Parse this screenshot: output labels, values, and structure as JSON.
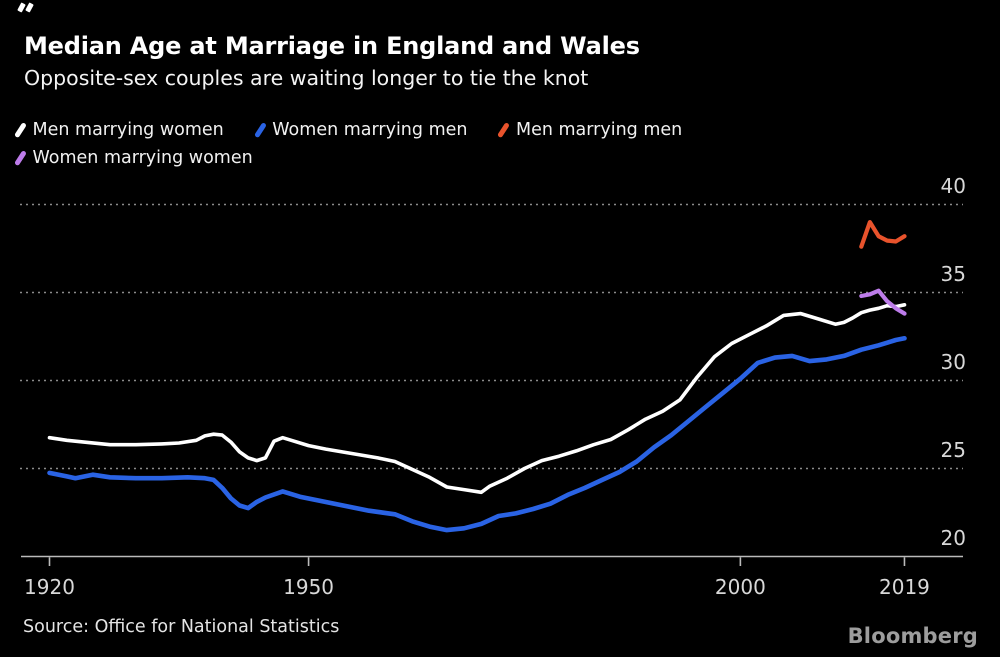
{
  "header": {
    "title": "Median Age at Marriage in England and Wales",
    "subtitle": "Opposite-sex couples are waiting longer to tie the knot"
  },
  "legend": [
    {
      "label": "Men marrying women",
      "color": "#ffffff"
    },
    {
      "label": "Women marrying men",
      "color": "#2a63e4"
    },
    {
      "label": "Men marrying men",
      "color": "#e8532c"
    },
    {
      "label": "Women marrying women",
      "color": "#bd7cea"
    }
  ],
  "chart_data": {
    "type": "line",
    "title": "Median Age at Marriage in England and Wales",
    "subtitle": "Opposite-sex couples are waiting longer to tie the knot",
    "xlabel": "",
    "ylabel": "",
    "x_range": [
      1916,
      2026
    ],
    "ylim": [
      20,
      40
    ],
    "x_ticks": [
      1920,
      1950,
      2000,
      2019
    ],
    "y_ticks": [
      20,
      25,
      30,
      35,
      40
    ],
    "grid": "horizontal dotted",
    "legend_position": "top",
    "colors": {
      "grid": "#8b8b8b",
      "axis": "#bbbbbb",
      "tick_labels": "#d8d8d8",
      "background": "#000000"
    },
    "series": [
      {
        "name": "Men marrying women",
        "color": "#ffffff",
        "points": [
          [
            1920,
            26.75
          ],
          [
            1922,
            26.6
          ],
          [
            1924,
            26.5
          ],
          [
            1927,
            26.35
          ],
          [
            1930,
            26.35
          ],
          [
            1933,
            26.4
          ],
          [
            1935,
            26.45
          ],
          [
            1937,
            26.6
          ],
          [
            1938,
            26.85
          ],
          [
            1939,
            26.95
          ],
          [
            1940,
            26.9
          ],
          [
            1941,
            26.5
          ],
          [
            1942,
            25.95
          ],
          [
            1943,
            25.6
          ],
          [
            1944,
            25.45
          ],
          [
            1945,
            25.6
          ],
          [
            1946,
            26.55
          ],
          [
            1947,
            26.75
          ],
          [
            1948,
            26.6
          ],
          [
            1950,
            26.3
          ],
          [
            1952,
            26.1
          ],
          [
            1955,
            25.85
          ],
          [
            1958,
            25.6
          ],
          [
            1960,
            25.4
          ],
          [
            1962,
            24.95
          ],
          [
            1964,
            24.5
          ],
          [
            1966,
            23.95
          ],
          [
            1968,
            23.8
          ],
          [
            1970,
            23.65
          ],
          [
            1971,
            24.0
          ],
          [
            1973,
            24.45
          ],
          [
            1975,
            25.0
          ],
          [
            1977,
            25.45
          ],
          [
            1979,
            25.7
          ],
          [
            1981,
            26.0
          ],
          [
            1983,
            26.35
          ],
          [
            1985,
            26.65
          ],
          [
            1987,
            27.2
          ],
          [
            1989,
            27.8
          ],
          [
            1991,
            28.25
          ],
          [
            1993,
            28.9
          ],
          [
            1995,
            30.2
          ],
          [
            1997,
            31.35
          ],
          [
            1999,
            32.1
          ],
          [
            2001,
            32.6
          ],
          [
            2003,
            33.1
          ],
          [
            2005,
            33.7
          ],
          [
            2007,
            33.8
          ],
          [
            2009,
            33.5
          ],
          [
            2011,
            33.2
          ],
          [
            2012,
            33.3
          ],
          [
            2013,
            33.55
          ],
          [
            2014,
            33.85
          ],
          [
            2015,
            34.0
          ],
          [
            2016,
            34.1
          ],
          [
            2017,
            34.25
          ],
          [
            2018,
            34.2
          ],
          [
            2019,
            34.3
          ]
        ]
      },
      {
        "name": "Women marrying men",
        "color": "#2a63e4",
        "points": [
          [
            1920,
            24.75
          ],
          [
            1922,
            24.55
          ],
          [
            1923,
            24.45
          ],
          [
            1925,
            24.65
          ],
          [
            1927,
            24.5
          ],
          [
            1930,
            24.45
          ],
          [
            1933,
            24.45
          ],
          [
            1936,
            24.5
          ],
          [
            1938,
            24.45
          ],
          [
            1939,
            24.35
          ],
          [
            1940,
            23.9
          ],
          [
            1941,
            23.3
          ],
          [
            1942,
            22.9
          ],
          [
            1943,
            22.75
          ],
          [
            1944,
            23.1
          ],
          [
            1945,
            23.35
          ],
          [
            1947,
            23.7
          ],
          [
            1949,
            23.4
          ],
          [
            1951,
            23.2
          ],
          [
            1954,
            22.9
          ],
          [
            1957,
            22.6
          ],
          [
            1960,
            22.4
          ],
          [
            1962,
            22.0
          ],
          [
            1964,
            21.7
          ],
          [
            1966,
            21.5
          ],
          [
            1968,
            21.6
          ],
          [
            1970,
            21.85
          ],
          [
            1972,
            22.3
          ],
          [
            1974,
            22.45
          ],
          [
            1976,
            22.7
          ],
          [
            1978,
            23.0
          ],
          [
            1980,
            23.5
          ],
          [
            1982,
            23.9
          ],
          [
            1984,
            24.35
          ],
          [
            1986,
            24.8
          ],
          [
            1988,
            25.4
          ],
          [
            1990,
            26.2
          ],
          [
            1992,
            26.9
          ],
          [
            1994,
            27.7
          ],
          [
            1996,
            28.5
          ],
          [
            1998,
            29.3
          ],
          [
            2000,
            30.1
          ],
          [
            2002,
            31.0
          ],
          [
            2004,
            31.3
          ],
          [
            2006,
            31.4
          ],
          [
            2008,
            31.1
          ],
          [
            2010,
            31.2
          ],
          [
            2012,
            31.4
          ],
          [
            2014,
            31.75
          ],
          [
            2016,
            32.0
          ],
          [
            2017,
            32.15
          ],
          [
            2018,
            32.3
          ],
          [
            2019,
            32.4
          ]
        ]
      },
      {
        "name": "Men marrying men",
        "color": "#e8532c",
        "points": [
          [
            2014,
            37.6
          ],
          [
            2015,
            39.0
          ],
          [
            2016,
            38.2
          ],
          [
            2017,
            37.95
          ],
          [
            2018,
            37.9
          ],
          [
            2019,
            38.2
          ]
        ]
      },
      {
        "name": "Women marrying women",
        "color": "#bd7cea",
        "points": [
          [
            2014,
            34.8
          ],
          [
            2015,
            34.9
          ],
          [
            2016,
            35.1
          ],
          [
            2017,
            34.5
          ],
          [
            2018,
            34.1
          ],
          [
            2019,
            33.8
          ]
        ]
      }
    ]
  },
  "footer": {
    "source": "Source: Office for National Statistics",
    "brand": "Bloomberg"
  }
}
